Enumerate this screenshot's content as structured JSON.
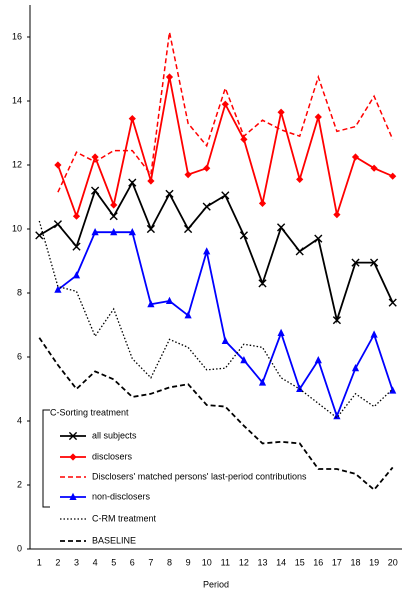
{
  "chart_data": {
    "type": "line",
    "x_label": "Period",
    "categories": [
      1,
      2,
      3,
      4,
      5,
      6,
      7,
      8,
      9,
      10,
      11,
      12,
      13,
      14,
      15,
      16,
      17,
      18,
      19,
      20
    ],
    "ylim": [
      0,
      17
    ],
    "yticks": [
      0,
      2,
      4,
      6,
      8,
      10,
      12,
      14,
      16
    ],
    "grid": false,
    "legend_group": "C-Sorting treatment",
    "series": [
      {
        "name": "all subjects",
        "color": "#000000",
        "dash": "solid",
        "marker": "x",
        "width": 1.8,
        "values": [
          9.8,
          10.15,
          9.45,
          11.2,
          10.4,
          11.45,
          10.0,
          11.1,
          10.0,
          10.7,
          11.05,
          9.8,
          8.3,
          10.05,
          9.3,
          9.7,
          7.15,
          8.95,
          8.95,
          7.7
        ]
      },
      {
        "name": "disclosers",
        "color": "#ff0000",
        "dash": "solid",
        "marker": "diamond",
        "width": 1.8,
        "values": [
          null,
          12.0,
          10.4,
          12.25,
          10.75,
          13.45,
          11.5,
          14.75,
          11.7,
          11.9,
          13.9,
          12.8,
          10.8,
          13.65,
          11.55,
          13.5,
          10.45,
          12.25,
          11.9,
          11.65
        ]
      },
      {
        "name": "Disclosers' matched persons' last-period contributions",
        "color": "#ff0000",
        "dash": "dashed",
        "marker": "none",
        "width": 1.5,
        "values": [
          null,
          11.15,
          12.4,
          12.1,
          12.45,
          12.45,
          11.7,
          16.15,
          13.3,
          12.6,
          14.4,
          12.9,
          13.4,
          13.1,
          12.9,
          14.75,
          13.05,
          13.2,
          14.15,
          12.8
        ]
      },
      {
        "name": "non-disclosers",
        "color": "#0000ff",
        "dash": "solid",
        "marker": "triangle",
        "width": 1.8,
        "values": [
          null,
          8.1,
          8.55,
          9.9,
          9.9,
          9.9,
          7.65,
          7.75,
          7.3,
          9.3,
          6.5,
          5.9,
          5.2,
          6.75,
          5.0,
          5.9,
          4.15,
          5.65,
          6.7,
          4.95
        ]
      },
      {
        "name": "C-RM treatment",
        "color": "#000000",
        "dash": "dotted",
        "marker": "none",
        "width": 1.3,
        "values": [
          10.25,
          8.2,
          8.05,
          6.65,
          7.5,
          5.95,
          5.35,
          6.55,
          6.3,
          5.6,
          5.65,
          6.4,
          6.3,
          5.35,
          5.0,
          4.55,
          4.1,
          4.85,
          4.45,
          5.0
        ]
      },
      {
        "name": "BASELINE",
        "color": "#000000",
        "dash": "dashed",
        "marker": "none",
        "width": 1.8,
        "values": [
          6.6,
          5.75,
          5.0,
          5.55,
          5.3,
          4.75,
          4.85,
          5.05,
          5.15,
          4.5,
          4.45,
          3.85,
          3.3,
          3.35,
          3.3,
          2.5,
          2.5,
          2.35,
          1.85,
          2.55
        ]
      }
    ]
  }
}
